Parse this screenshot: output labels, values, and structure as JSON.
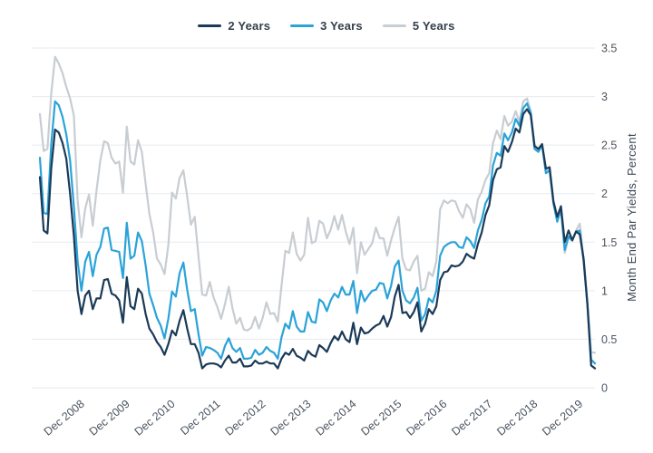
{
  "legend": {
    "items": [
      {
        "label": "2 Years"
      },
      {
        "label": "3 Years"
      },
      {
        "label": "5 Years"
      }
    ]
  },
  "y_axis": {
    "title": "Month End Par Yields, Percent",
    "tick_labels": [
      "0",
      "0.5",
      "1",
      "1.5",
      "2",
      "2.5",
      "3",
      "3.5"
    ]
  },
  "x_axis": {
    "tick_labels": [
      "Dec 2008",
      "Dec 2009",
      "Dec 2010",
      "Dec 2011",
      "Dec 2012",
      "Dec 2013",
      "Dec 2014",
      "Dec 2015",
      "Dec 2016",
      "Dec 2017",
      "Dec 2018",
      "Dec 2019"
    ]
  },
  "colors": {
    "series_2y": "#1b3a57",
    "series_3y": "#2aa3d9",
    "series_5y": "#c8cdd2",
    "gridline": "#e8eaed",
    "tick_text": "#4a5460",
    "axis_title_text": "#3a4654",
    "legend_text": "#333f4b",
    "background": "#ffffff"
  },
  "chart_data": {
    "type": "line",
    "title": "",
    "xlabel": "",
    "ylabel": "Month End Par Yields, Percent",
    "ylim": [
      0,
      3.5
    ],
    "grid": "horizontal",
    "legend_position": "top-center",
    "x_range": {
      "start": "2008-01",
      "end": "2020-04",
      "frequency": "monthly",
      "points": 148
    },
    "x_year_tick_month": "December",
    "series": [
      {
        "name": "2 Years",
        "color": "#1b3a57",
        "values": [
          2.17,
          1.62,
          1.59,
          2.26,
          2.66,
          2.63,
          2.52,
          2.36,
          2.0,
          1.56,
          1.0,
          0.76,
          0.95,
          1.0,
          0.81,
          0.92,
          0.92,
          1.11,
          1.12,
          0.97,
          0.95,
          0.9,
          0.67,
          1.14,
          0.84,
          0.81,
          1.02,
          0.97,
          0.76,
          0.61,
          0.55,
          0.47,
          0.42,
          0.34,
          0.45,
          0.59,
          0.54,
          0.69,
          0.8,
          0.61,
          0.45,
          0.45,
          0.36,
          0.2,
          0.24,
          0.25,
          0.25,
          0.24,
          0.21,
          0.28,
          0.33,
          0.26,
          0.26,
          0.3,
          0.22,
          0.22,
          0.23,
          0.28,
          0.25,
          0.25,
          0.27,
          0.25,
          0.25,
          0.2,
          0.3,
          0.36,
          0.34,
          0.4,
          0.33,
          0.31,
          0.28,
          0.38,
          0.34,
          0.32,
          0.44,
          0.41,
          0.37,
          0.46,
          0.53,
          0.49,
          0.58,
          0.5,
          0.47,
          0.67,
          0.45,
          0.62,
          0.56,
          0.57,
          0.61,
          0.64,
          0.66,
          0.74,
          0.63,
          0.73,
          0.94,
          1.06,
          0.77,
          0.78,
          0.72,
          0.78,
          0.88,
          0.58,
          0.66,
          0.81,
          0.76,
          0.84,
          1.11,
          1.19,
          1.2,
          1.26,
          1.25,
          1.26,
          1.3,
          1.38,
          1.35,
          1.33,
          1.48,
          1.6,
          1.78,
          1.88,
          2.14,
          2.25,
          2.27,
          2.49,
          2.43,
          2.53,
          2.67,
          2.63,
          2.82,
          2.87,
          2.81,
          2.49,
          2.46,
          2.51,
          2.26,
          2.27,
          1.92,
          1.76,
          1.87,
          1.5,
          1.62,
          1.52,
          1.61,
          1.58,
          1.33,
          0.86,
          0.23,
          0.2
        ]
      },
      {
        "name": "3 Years",
        "color": "#2aa3d9",
        "values": [
          2.37,
          1.8,
          1.79,
          2.51,
          2.95,
          2.91,
          2.79,
          2.61,
          2.34,
          1.86,
          1.3,
          1.0,
          1.3,
          1.4,
          1.15,
          1.37,
          1.45,
          1.64,
          1.65,
          1.42,
          1.41,
          1.4,
          1.13,
          1.7,
          1.33,
          1.36,
          1.6,
          1.51,
          1.26,
          0.97,
          0.85,
          0.72,
          0.64,
          0.51,
          0.71,
          0.99,
          0.94,
          1.18,
          1.29,
          1.01,
          0.79,
          0.81,
          0.55,
          0.33,
          0.42,
          0.41,
          0.39,
          0.36,
          0.3,
          0.43,
          0.51,
          0.41,
          0.37,
          0.41,
          0.3,
          0.3,
          0.31,
          0.39,
          0.34,
          0.36,
          0.42,
          0.38,
          0.36,
          0.3,
          0.52,
          0.66,
          0.61,
          0.79,
          0.63,
          0.58,
          0.58,
          0.78,
          0.68,
          0.67,
          0.91,
          0.88,
          0.79,
          0.9,
          0.97,
          0.93,
          1.04,
          0.96,
          0.96,
          1.1,
          0.77,
          1.0,
          0.89,
          0.95,
          1.0,
          1.01,
          1.08,
          1.07,
          0.92,
          1.05,
          1.25,
          1.31,
          1.0,
          0.9,
          0.87,
          0.93,
          1.03,
          0.69,
          0.76,
          0.92,
          0.88,
          1.0,
          1.36,
          1.45,
          1.48,
          1.5,
          1.5,
          1.45,
          1.44,
          1.55,
          1.51,
          1.44,
          1.62,
          1.73,
          1.9,
          1.97,
          2.29,
          2.42,
          2.39,
          2.62,
          2.55,
          2.63,
          2.77,
          2.7,
          2.88,
          2.93,
          2.83,
          2.46,
          2.43,
          2.5,
          2.21,
          2.24,
          1.9,
          1.71,
          1.84,
          1.42,
          1.56,
          1.52,
          1.61,
          1.62,
          1.3,
          0.85,
          0.29,
          0.25
        ]
      },
      {
        "name": "5 Years",
        "color": "#c8cdd2",
        "values": [
          2.82,
          2.44,
          2.46,
          3.03,
          3.41,
          3.34,
          3.24,
          3.1,
          2.98,
          2.8,
          1.93,
          1.55,
          1.85,
          1.99,
          1.67,
          2.03,
          2.34,
          2.54,
          2.52,
          2.37,
          2.31,
          2.33,
          2.01,
          2.69,
          2.33,
          2.3,
          2.55,
          2.43,
          2.1,
          1.79,
          1.6,
          1.33,
          1.27,
          1.17,
          1.47,
          2.01,
          1.95,
          2.16,
          2.24,
          1.97,
          1.68,
          1.76,
          1.35,
          0.96,
          0.95,
          1.09,
          0.93,
          0.83,
          0.71,
          0.86,
          1.04,
          0.82,
          0.66,
          0.72,
          0.6,
          0.59,
          0.62,
          0.73,
          0.61,
          0.72,
          0.88,
          0.76,
          0.77,
          0.68,
          1.05,
          1.41,
          1.39,
          1.6,
          1.38,
          1.31,
          1.37,
          1.75,
          1.49,
          1.51,
          1.72,
          1.69,
          1.54,
          1.63,
          1.77,
          1.63,
          1.78,
          1.61,
          1.48,
          1.65,
          1.18,
          1.5,
          1.37,
          1.43,
          1.49,
          1.65,
          1.54,
          1.54,
          1.36,
          1.52,
          1.65,
          1.76,
          1.33,
          1.22,
          1.21,
          1.3,
          1.36,
          1.0,
          1.02,
          1.19,
          1.15,
          1.3,
          1.84,
          1.93,
          1.9,
          1.93,
          1.92,
          1.82,
          1.75,
          1.89,
          1.84,
          1.7,
          1.94,
          2.02,
          2.14,
          2.21,
          2.52,
          2.65,
          2.56,
          2.8,
          2.7,
          2.74,
          2.85,
          2.74,
          2.95,
          2.98,
          2.85,
          2.51,
          2.44,
          2.51,
          2.23,
          2.28,
          1.93,
          1.77,
          1.83,
          1.39,
          1.55,
          1.51,
          1.62,
          1.69,
          1.32,
          0.89,
          0.37,
          0.36
        ]
      }
    ]
  }
}
